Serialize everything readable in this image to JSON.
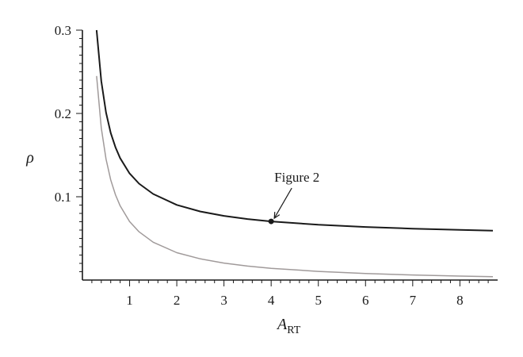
{
  "chart_data": {
    "type": "line",
    "xlabel": "A",
    "xlabel_sub": "RT",
    "ylabel": "ρ",
    "xlim": [
      0,
      8.8
    ],
    "ylim": [
      0,
      0.3
    ],
    "x_ticks": [
      1,
      2,
      3,
      4,
      5,
      6,
      7,
      8
    ],
    "x_tick_labels": [
      "1",
      "2",
      "3",
      "4",
      "5",
      "6",
      "7",
      "8"
    ],
    "y_ticks": [
      0.1,
      0.2,
      0.3
    ],
    "y_tick_labels": [
      "0.1",
      "0.2",
      "0.3"
    ],
    "grid": false,
    "series": [
      {
        "color": "#1a1a1a",
        "x": [
          0.3,
          0.4,
          0.5,
          0.6,
          0.7,
          0.8,
          1.0,
          1.2,
          1.5,
          2.0,
          2.5,
          3.0,
          3.5,
          4.0,
          5.0,
          6.0,
          7.0,
          8.0,
          8.7
        ],
        "y": [
          0.3,
          0.239,
          0.201,
          0.1767,
          0.1594,
          0.1464,
          0.128,
          0.1157,
          0.1033,
          0.0902,
          0.0823,
          0.077,
          0.0732,
          0.0704,
          0.0664,
          0.0637,
          0.0617,
          0.0602,
          0.0593
        ]
      },
      {
        "color": "#a09a9a",
        "x": [
          0.3,
          0.4,
          0.5,
          0.6,
          0.7,
          0.8,
          1.0,
          1.2,
          1.5,
          2.0,
          2.5,
          3.0,
          3.5,
          4.0,
          5.0,
          6.0,
          7.0,
          8.0,
          8.7
        ],
        "y": [
          0.245,
          0.1826,
          0.1452,
          0.1203,
          0.1024,
          0.0891,
          0.0703,
          0.0579,
          0.0454,
          0.0329,
          0.0254,
          0.0204,
          0.0168,
          0.0141,
          0.0104,
          0.0079,
          0.0061,
          0.0048,
          0.004
        ]
      }
    ],
    "marker": {
      "x": 4.0,
      "y": 0.0704
    },
    "annotations": [
      {
        "text": "Figure 2",
        "x": 4.0,
        "y": 0.0704
      }
    ]
  }
}
